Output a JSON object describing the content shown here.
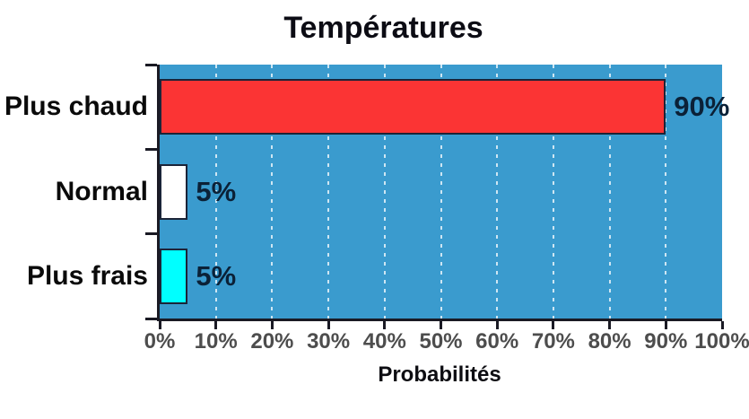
{
  "chart": {
    "title": "Températures",
    "xlabel": "Probabilités"
  },
  "chart_data": {
    "type": "bar",
    "orientation": "horizontal",
    "title": "Températures",
    "xlabel": "Probabilités",
    "ylabel": "",
    "categories": [
      "Plus chaud",
      "Normal",
      "Plus frais"
    ],
    "values": [
      90,
      5,
      5
    ],
    "value_labels": [
      "90%",
      "5%",
      "5%"
    ],
    "xlim": [
      0,
      100
    ],
    "xticks": [
      0,
      10,
      20,
      30,
      40,
      50,
      60,
      70,
      80,
      90,
      100
    ],
    "xtick_labels": [
      "0%",
      "10%",
      "20%",
      "30%",
      "40%",
      "50%",
      "60%",
      "70%",
      "80%",
      "90%",
      "100%"
    ],
    "grid": {
      "vertical": true,
      "style": "dotted",
      "color": "#ffffff"
    },
    "legend": false,
    "colors": {
      "plot_background": "#3a9bce",
      "bar_fills": [
        "#fb3434",
        "#ffffff",
        "#00ffff"
      ],
      "bar_border": "#1b2438",
      "axis": "#1a1a24",
      "value_label": "#0b2137",
      "tick_label": "#4d4d4d",
      "text": "#0c0c14"
    }
  }
}
